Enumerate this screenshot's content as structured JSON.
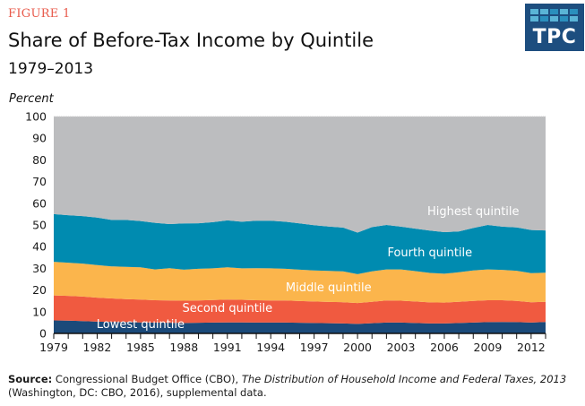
{
  "header": {
    "figure_label": "FIGURE 1",
    "title": "Share of Before-Tax Income by Quintile",
    "subtitle": "1979–2013"
  },
  "logo": {
    "text": "TPC",
    "colors": {
      "background": "#1d4e7f",
      "tile_light": "#5ab4d6",
      "tile_dark": "#2a8fbd"
    }
  },
  "source": {
    "label": "Source:",
    "text_before": " Congressional Budget Office (CBO), ",
    "italic_title": "The Distribution of Household Income and Federal Taxes, 2013",
    "text_after": " (Washington, DC: CBO, 2016), supplemental data."
  },
  "chart_data": {
    "type": "area",
    "stacked": true,
    "title": "Share of Before-Tax Income by Quintile",
    "subtitle": "1979–2013",
    "xlabel": "",
    "ylabel": "Percent",
    "ylim": [
      0,
      100
    ],
    "xlim": [
      1979,
      2013
    ],
    "yticks": [
      0,
      10,
      20,
      30,
      40,
      50,
      60,
      70,
      80,
      90,
      100
    ],
    "xticks": [
      1979,
      1982,
      1985,
      1988,
      1991,
      1994,
      1997,
      2000,
      2003,
      2006,
      2009,
      2012
    ],
    "grid": false,
    "legend": "inline-labels",
    "x": [
      1979,
      1980,
      1981,
      1982,
      1983,
      1984,
      1985,
      1986,
      1987,
      1988,
      1989,
      1990,
      1991,
      1992,
      1993,
      1994,
      1995,
      1996,
      1997,
      1998,
      1999,
      2000,
      2001,
      2002,
      2003,
      2004,
      2005,
      2006,
      2007,
      2008,
      2009,
      2010,
      2011,
      2012,
      2013
    ],
    "series": [
      {
        "name": "Lowest quintile",
        "color": "#1b4a7a",
        "values": [
          6.0,
          5.9,
          5.7,
          5.4,
          5.3,
          5.2,
          5.1,
          5.0,
          4.9,
          4.8,
          4.9,
          5.0,
          5.1,
          5.1,
          5.0,
          5.0,
          5.0,
          4.9,
          4.8,
          4.7,
          4.6,
          4.4,
          4.7,
          5.0,
          5.0,
          4.8,
          4.6,
          4.6,
          4.8,
          5.0,
          5.2,
          5.3,
          5.2,
          5.0,
          5.3
        ]
      },
      {
        "name": "Second quintile",
        "color": "#f05a40",
        "values": [
          11.5,
          11.4,
          11.3,
          11.1,
          10.8,
          10.6,
          10.5,
          10.3,
          10.3,
          10.3,
          10.3,
          10.4,
          10.5,
          10.4,
          10.3,
          10.2,
          10.2,
          10.0,
          9.9,
          9.8,
          9.8,
          9.6,
          9.9,
          10.2,
          10.1,
          9.9,
          9.7,
          9.6,
          9.8,
          10.0,
          10.1,
          10.0,
          9.8,
          9.4,
          9.3
        ]
      },
      {
        "name": "Middle quintile",
        "color": "#fbb54c",
        "values": [
          15.5,
          15.3,
          15.2,
          15.0,
          14.8,
          14.9,
          14.9,
          14.2,
          14.9,
          14.3,
          14.6,
          14.6,
          14.9,
          14.5,
          14.8,
          14.8,
          14.6,
          14.5,
          14.3,
          14.3,
          14.2,
          13.3,
          14.0,
          14.3,
          14.4,
          14.0,
          13.6,
          13.3,
          13.6,
          14.0,
          14.2,
          14.0,
          13.9,
          13.4,
          13.4
        ]
      },
      {
        "name": "Fourth quintile",
        "color": "#008bb0",
        "values": [
          22.0,
          21.9,
          21.9,
          21.9,
          21.4,
          21.6,
          21.3,
          21.5,
          20.3,
          21.3,
          21.0,
          21.3,
          21.6,
          21.5,
          21.9,
          22.0,
          21.7,
          21.3,
          20.9,
          20.5,
          20.2,
          19.2,
          20.4,
          20.5,
          19.7,
          19.6,
          19.5,
          19.2,
          18.8,
          19.6,
          20.5,
          19.9,
          20.0,
          19.9,
          19.5
        ]
      },
      {
        "name": "Highest quintile",
        "color": "#bcbdbf",
        "values": [
          45.0,
          45.5,
          45.9,
          46.6,
          47.7,
          47.7,
          48.2,
          49.0,
          49.6,
          49.3,
          49.2,
          48.7,
          47.9,
          48.5,
          48.0,
          48.0,
          48.5,
          49.3,
          50.1,
          50.7,
          51.2,
          53.5,
          51.0,
          50.0,
          50.8,
          51.7,
          52.6,
          53.3,
          53.0,
          51.4,
          50.0,
          50.8,
          51.1,
          52.3,
          52.5
        ]
      }
    ],
    "annotations": [
      {
        "text": "Lowest quintile",
        "series": "Lowest quintile",
        "x": 1985,
        "y": 2.5
      },
      {
        "text": "Second quintile",
        "series": "Second quintile",
        "x": 1991,
        "y": 10
      },
      {
        "text": "Middle quintile",
        "series": "Middle quintile",
        "x": 1998,
        "y": 19.5
      },
      {
        "text": "Fourth quintile",
        "series": "Fourth quintile",
        "x": 2005,
        "y": 35.5
      },
      {
        "text": "Highest quintile",
        "series": "Highest quintile",
        "x": 2008,
        "y": 54.5
      }
    ]
  }
}
